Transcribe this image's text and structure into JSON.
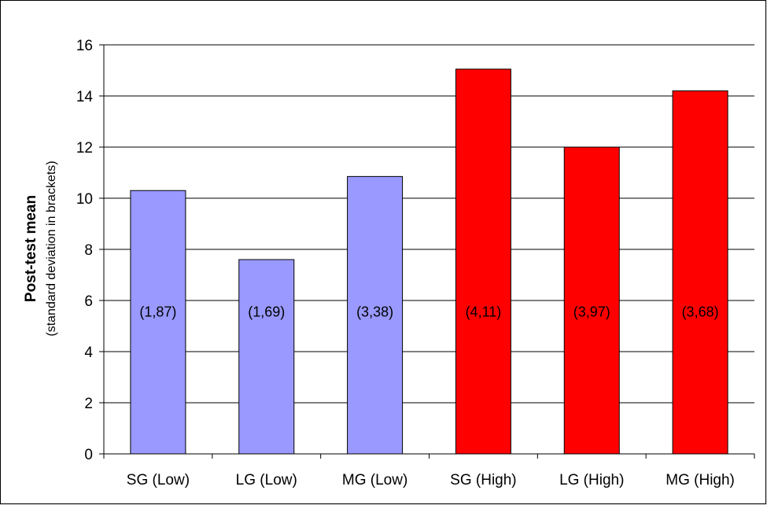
{
  "chart_data": {
    "type": "bar",
    "categories": [
      "SG (Low)",
      "LG (Low)",
      "MG (Low)",
      "SG (High)",
      "LG (High)",
      "MG (High)"
    ],
    "values": [
      10.3,
      7.6,
      10.85,
      15.05,
      12.0,
      14.2
    ],
    "bar_labels": [
      "(1,87)",
      "(1,69)",
      "(3,38)",
      "(4,11)",
      "(3,97)",
      "(3,68)"
    ],
    "bar_colors": [
      "#9999ff",
      "#9999ff",
      "#9999ff",
      "#ff0000",
      "#ff0000",
      "#ff0000"
    ],
    "ylabel": "Post-test mean",
    "ylabel_sub": "(standard deviation in brackets)",
    "ylim": [
      0,
      16
    ],
    "yticks": [
      0,
      2,
      4,
      6,
      8,
      10,
      12,
      14,
      16
    ],
    "grid": true,
    "legend": "none"
  }
}
